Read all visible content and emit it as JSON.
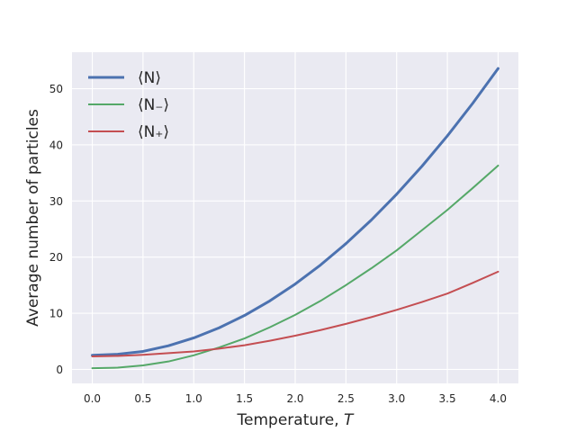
{
  "chart_data": {
    "type": "line",
    "title": "",
    "xlabel": "Temperature, ",
    "xlabel_var": "T",
    "ylabel": "Average number of particles",
    "xlim": [
      -0.2,
      4.2
    ],
    "ylim": [
      -2.5,
      56.5
    ],
    "xticks": [
      0.0,
      0.5,
      1.0,
      1.5,
      2.0,
      2.5,
      3.0,
      3.5,
      4.0
    ],
    "xtick_labels": [
      "0.0",
      "0.5",
      "1.0",
      "1.5",
      "2.0",
      "2.5",
      "3.0",
      "3.5",
      "4.0"
    ],
    "yticks": [
      0,
      10,
      20,
      30,
      40,
      50
    ],
    "ytick_labels": [
      "0",
      "10",
      "20",
      "30",
      "40",
      "50"
    ],
    "grid": true,
    "background": "#eaeaf2",
    "legend_position": "top-left",
    "x": [
      0.0,
      0.25,
      0.5,
      0.75,
      1.0,
      1.25,
      1.5,
      1.75,
      2.0,
      2.25,
      2.5,
      2.75,
      3.0,
      3.25,
      3.5,
      3.75,
      4.0
    ],
    "series": [
      {
        "name": "⟨N⟩",
        "color": "#4c72b0",
        "linewidth": 3,
        "values": [
          2.5,
          2.7,
          3.2,
          4.2,
          5.6,
          7.4,
          9.6,
          12.2,
          15.2,
          18.6,
          22.4,
          26.6,
          31.2,
          36.2,
          41.6,
          47.4,
          53.6
        ]
      },
      {
        "name": "⟨N₋⟩",
        "color": "#55a868",
        "linewidth": 2,
        "values": [
          0.2,
          0.3,
          0.7,
          1.4,
          2.5,
          3.9,
          5.5,
          7.5,
          9.7,
          12.2,
          15.0,
          18.0,
          21.2,
          24.8,
          28.4,
          32.3,
          36.3
        ]
      },
      {
        "name": "⟨N₊⟩",
        "color": "#c44e52",
        "linewidth": 2,
        "values": [
          2.3,
          2.4,
          2.6,
          2.9,
          3.2,
          3.7,
          4.3,
          5.1,
          6.0,
          7.0,
          8.1,
          9.3,
          10.6,
          12.0,
          13.5,
          15.4,
          17.4
        ]
      }
    ]
  }
}
